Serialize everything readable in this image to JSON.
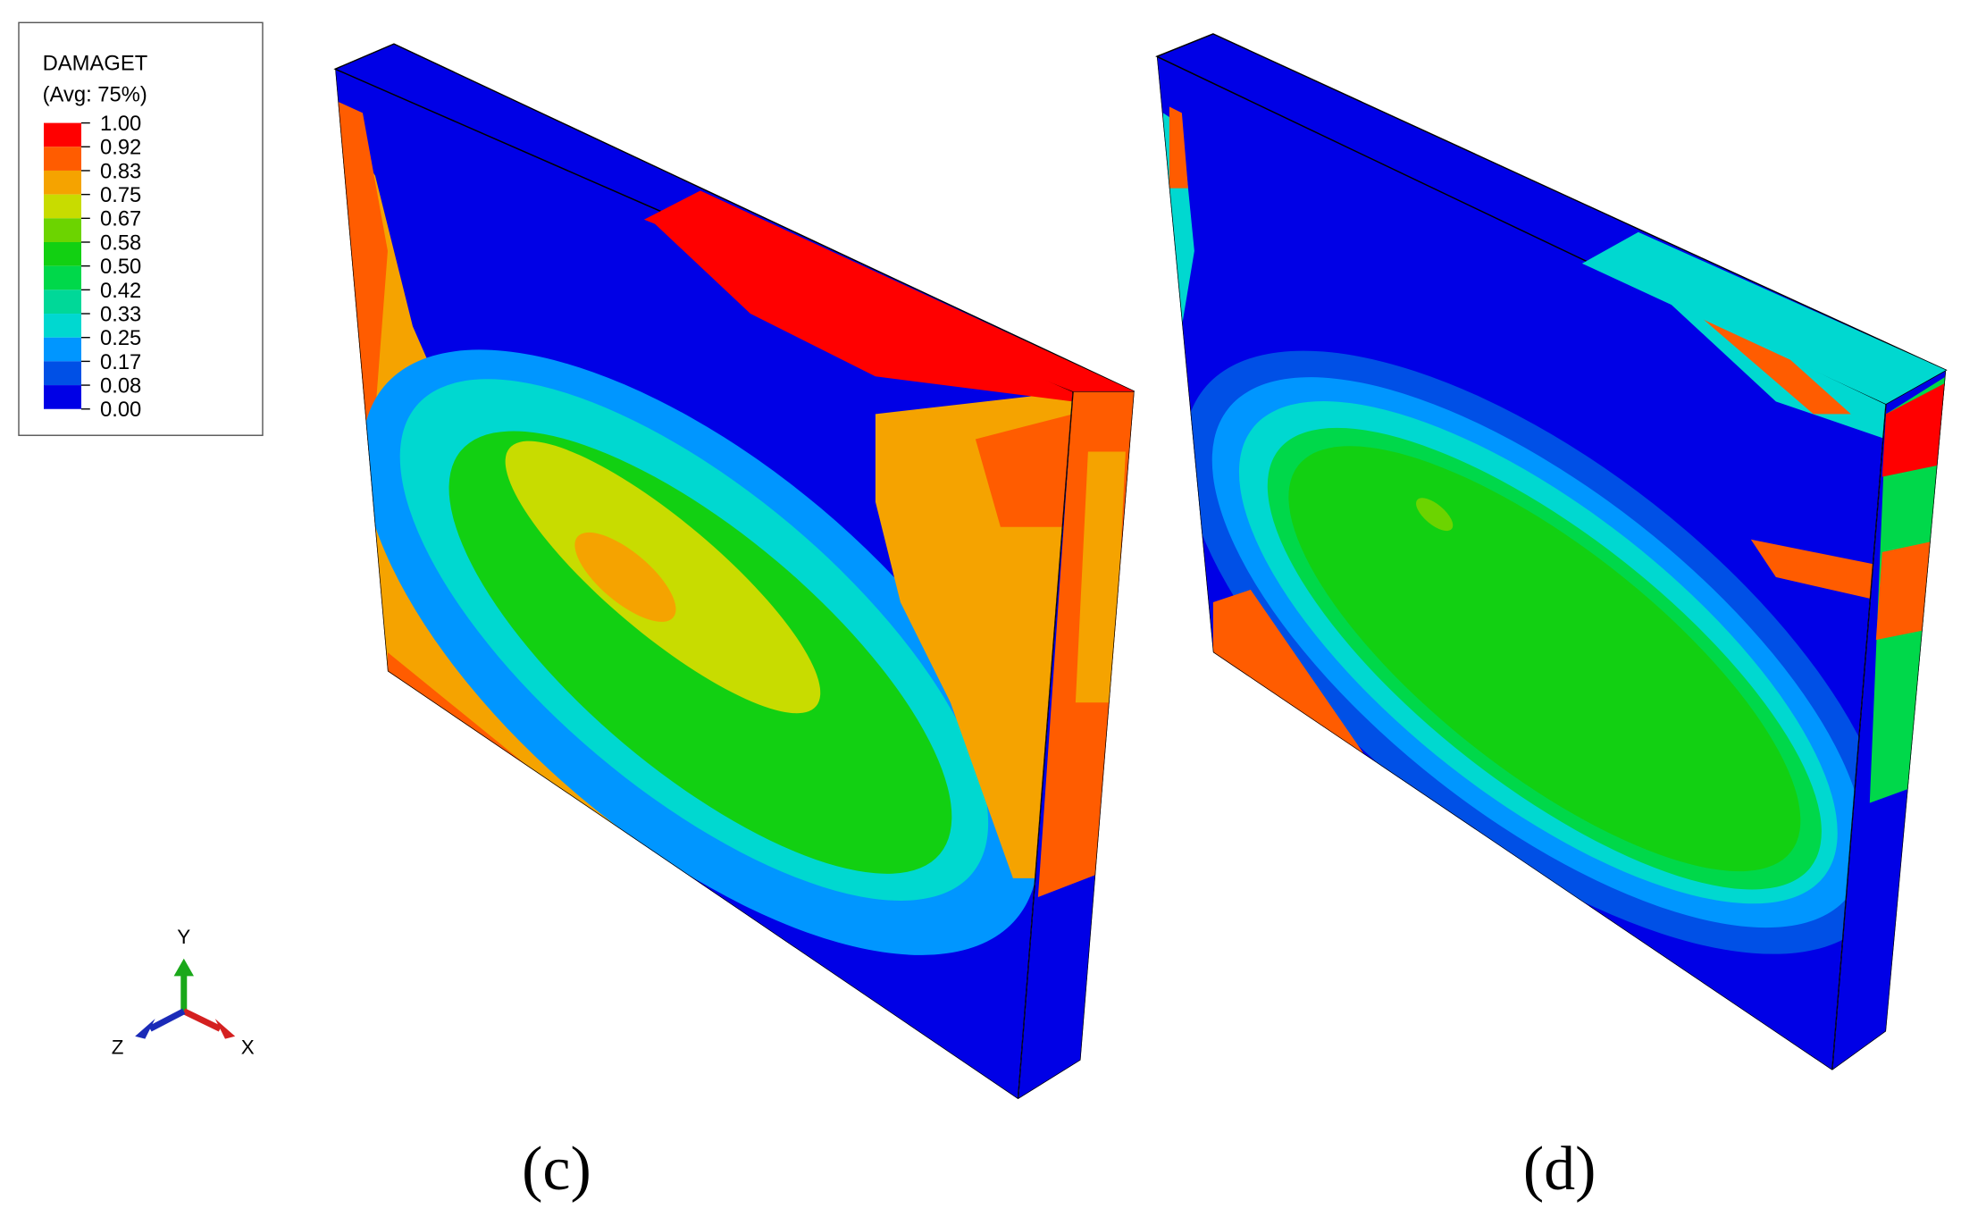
{
  "legend": {
    "title": "DAMAGET",
    "subtitle": "(Avg: 75%)",
    "labels": [
      "1.00",
      "0.92",
      "0.83",
      "0.75",
      "0.67",
      "0.58",
      "0.50",
      "0.42",
      "0.33",
      "0.25",
      "0.17",
      "0.08",
      "0.00"
    ],
    "colors": [
      "#ff0000",
      "#ff5c00",
      "#f5a300",
      "#c8dc00",
      "#6cd400",
      "#12d012",
      "#00d84a",
      "#00d898",
      "#00d8d0",
      "#0096ff",
      "#0050e6",
      "#0000e6"
    ]
  },
  "triad": {
    "y": "Y",
    "z": "Z",
    "x": "X"
  },
  "panels": [
    {
      "caption": "(c)"
    },
    {
      "caption": "(d)"
    }
  ]
}
